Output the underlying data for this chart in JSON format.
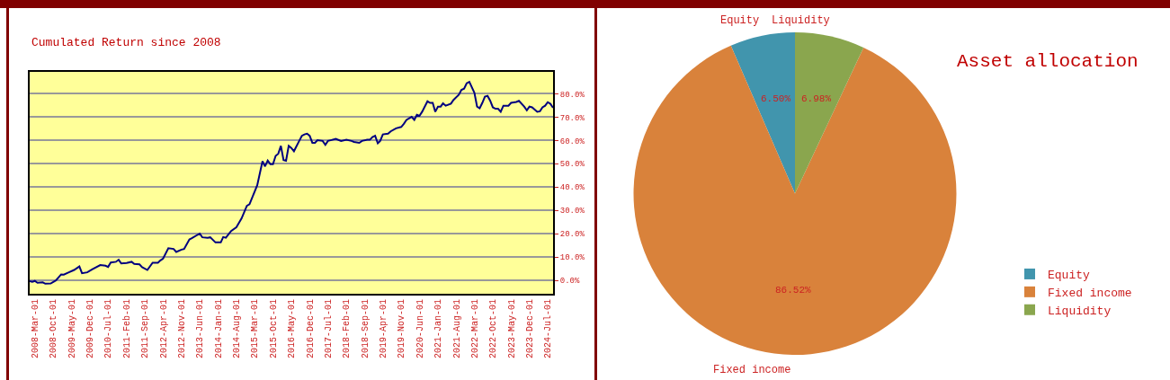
{
  "chart_data": [
    {
      "type": "line",
      "title": "Cumulated Return since 2008",
      "x": [
        "2008-01",
        "2008-02",
        "2008-03",
        "2008-04",
        "2008-06",
        "2008-07",
        "2008-09",
        "2008-11",
        "2009-01",
        "2009-02",
        "2009-04",
        "2009-06",
        "2009-08",
        "2009-09",
        "2009-11",
        "2010-01",
        "2010-04",
        "2010-06",
        "2010-07",
        "2010-08",
        "2010-10",
        "2010-11",
        "2010-12",
        "2011-02",
        "2011-04",
        "2011-05",
        "2011-07",
        "2011-08",
        "2011-10",
        "2011-12",
        "2012-02",
        "2012-03",
        "2012-04",
        "2012-06",
        "2012-08",
        "2012-09",
        "2012-11",
        "2012-12",
        "2013-02",
        "2013-03",
        "2013-06",
        "2013-07",
        "2013-09",
        "2013-10",
        "2013-12",
        "2014-02",
        "2014-03",
        "2014-04",
        "2014-06",
        "2014-08",
        "2014-10",
        "2014-12",
        "2015-01",
        "2015-04",
        "2015-06",
        "2015-07",
        "2015-08",
        "2015-09",
        "2015-10",
        "2015-11",
        "2015-12",
        "2016-01",
        "2016-02",
        "2016-03",
        "2016-04",
        "2016-05",
        "2016-06",
        "2016-08",
        "2016-09",
        "2016-10",
        "2016-11",
        "2016-12",
        "2017-01",
        "2017-02",
        "2017-03",
        "2017-05",
        "2017-06",
        "2017-07",
        "2017-08",
        "2017-10",
        "2017-12",
        "2018-02",
        "2018-04",
        "2018-05",
        "2018-07",
        "2018-08",
        "2018-10",
        "2018-11",
        "2018-12",
        "2019-01",
        "2019-02",
        "2019-03",
        "2019-04",
        "2019-06",
        "2019-07",
        "2019-09",
        "2019-11",
        "2019-12",
        "2020-01",
        "2020-03",
        "2020-04",
        "2020-05",
        "2020-06",
        "2020-07",
        "2020-09",
        "2020-10",
        "2020-11",
        "2020-12",
        "2021-01",
        "2021-02",
        "2021-03",
        "2021-04",
        "2021-06",
        "2021-07",
        "2021-09",
        "2021-10",
        "2021-11",
        "2021-12",
        "2022-01",
        "2022-03",
        "2022-04",
        "2022-05",
        "2022-06",
        "2022-07",
        "2022-08",
        "2022-09",
        "2022-10",
        "2022-11",
        "2022-12",
        "2023-01",
        "2023-02",
        "2023-04",
        "2023-05",
        "2023-07",
        "2023-08",
        "2023-10",
        "2023-11",
        "2023-12",
        "2024-01",
        "2024-03",
        "2024-04",
        "2024-05",
        "2024-06",
        "2024-07",
        "2024-08",
        "2024-09"
      ],
      "series": [
        {
          "color": "#000080",
          "values": [
            -0.3,
            -0.6,
            -0.2,
            -1.0,
            -0.8,
            -1.4,
            -1.3,
            0.0,
            2.6,
            2.5,
            3.5,
            4.5,
            6.0,
            3.1,
            3.5,
            4.8,
            6.6,
            6.3,
            5.8,
            7.7,
            8.0,
            8.9,
            7.3,
            7.5,
            8.0,
            7.1,
            6.9,
            5.7,
            4.5,
            7.6,
            7.6,
            8.6,
            9.4,
            13.8,
            13.5,
            12.2,
            13.2,
            13.5,
            17.6,
            18.1,
            20.1,
            18.5,
            18.3,
            18.5,
            16.3,
            16.3,
            18.6,
            18.3,
            21.2,
            22.8,
            26.6,
            32.0,
            32.7,
            40.8,
            51.1,
            48.9,
            51.4,
            49.8,
            49.8,
            53.4,
            54.3,
            57.7,
            51.6,
            51.3,
            57.7,
            56.8,
            55.4,
            59.8,
            62.0,
            62.6,
            62.9,
            62.0,
            59.0,
            59.0,
            60.1,
            59.8,
            58.1,
            59.8,
            60.1,
            60.7,
            59.8,
            60.3,
            59.8,
            59.4,
            59.0,
            59.8,
            60.3,
            60.3,
            61.5,
            62.0,
            58.8,
            59.8,
            62.6,
            62.9,
            63.9,
            65.2,
            65.8,
            67.1,
            68.8,
            70.1,
            68.8,
            71.0,
            70.6,
            72.3,
            76.8,
            76.1,
            76.1,
            72.3,
            74.5,
            74.5,
            75.9,
            74.9,
            75.8,
            77.4,
            79.6,
            81.7,
            82.2,
            84.5,
            85.1,
            80.4,
            74.5,
            73.8,
            76.1,
            78.8,
            79.1,
            77.0,
            74.2,
            73.6,
            73.6,
            72.3,
            74.9,
            74.9,
            76.1,
            76.5,
            77.0,
            74.5,
            72.9,
            74.5,
            74.2,
            72.3,
            72.5,
            74.2,
            74.9,
            76.4,
            75.7,
            74.0
          ]
        }
      ],
      "xlim": [
        "2008-01",
        "2024-09"
      ],
      "xticks": [
        {
          "value": "2008-03-01",
          "label": "2008-Mar-01"
        },
        {
          "value": "2008-10-01",
          "label": "2008-Oct-01"
        },
        {
          "value": "2009-05-01",
          "label": "2009-May-01"
        },
        {
          "value": "2009-12-01",
          "label": "2009-Dec-01"
        },
        {
          "value": "2010-07-01",
          "label": "2010-Jul-01"
        },
        {
          "value": "2011-02-01",
          "label": "2011-Feb-01"
        },
        {
          "value": "2011-09-01",
          "label": "2011-Sep-01"
        },
        {
          "value": "2012-04-01",
          "label": "2012-Apr-01"
        },
        {
          "value": "2012-11-01",
          "label": "2012-Nov-01"
        },
        {
          "value": "2013-06-01",
          "label": "2013-Jun-01"
        },
        {
          "value": "2014-01-01",
          "label": "2014-Jan-01"
        },
        {
          "value": "2014-08-01",
          "label": "2014-Aug-01"
        },
        {
          "value": "2015-03-01",
          "label": "2015-Mar-01"
        },
        {
          "value": "2015-10-01",
          "label": "2015-Oct-01"
        },
        {
          "value": "2016-05-01",
          "label": "2016-May-01"
        },
        {
          "value": "2016-12-01",
          "label": "2016-Dec-01"
        },
        {
          "value": "2017-07-01",
          "label": "2017-Jul-01"
        },
        {
          "value": "2018-02-01",
          "label": "2018-Feb-01"
        },
        {
          "value": "2018-09-01",
          "label": "2018-Sep-01"
        },
        {
          "value": "2019-04-01",
          "label": "2019-Apr-01"
        },
        {
          "value": "2019-11-01",
          "label": "2019-Nov-01"
        },
        {
          "value": "2020-06-01",
          "label": "2020-Jun-01"
        },
        {
          "value": "2021-01-01",
          "label": "2021-Jan-01"
        },
        {
          "value": "2021-08-01",
          "label": "2021-Aug-01"
        },
        {
          "value": "2022-03-01",
          "label": "2022-Mar-01"
        },
        {
          "value": "2022-10-01",
          "label": "2022-Oct-01"
        },
        {
          "value": "2023-05-01",
          "label": "2023-May-01"
        },
        {
          "value": "2023-12-01",
          "label": "2023-Dec-01"
        },
        {
          "value": "2024-07-01",
          "label": "2024-Jul-01"
        }
      ],
      "ylim": [
        -5.7,
        89.4
      ],
      "yticks": [
        {
          "value": 0,
          "label": "0.0%"
        },
        {
          "value": 10,
          "label": "10.0%"
        },
        {
          "value": 20,
          "label": "20.0%"
        },
        {
          "value": 30,
          "label": "30.0%"
        },
        {
          "value": 40,
          "label": "40.0%"
        },
        {
          "value": 50,
          "label": "50.0%"
        },
        {
          "value": 60,
          "label": "60.0%"
        },
        {
          "value": 70,
          "label": "70.0%"
        },
        {
          "value": 80,
          "label": "80.0%"
        }
      ],
      "grid": "y"
    },
    {
      "type": "pie",
      "title": "Asset allocation",
      "categories": [
        "Equity",
        "Fixed income",
        "Liquidity"
      ],
      "values": [
        6.5,
        86.52,
        6.98
      ],
      "colors": [
        "#4195ad",
        "#d9823b",
        "#8aa64e"
      ],
      "value_labels": [
        "6.50%",
        "86.52%",
        "6.98%"
      ],
      "legend": "bottom right"
    }
  ]
}
